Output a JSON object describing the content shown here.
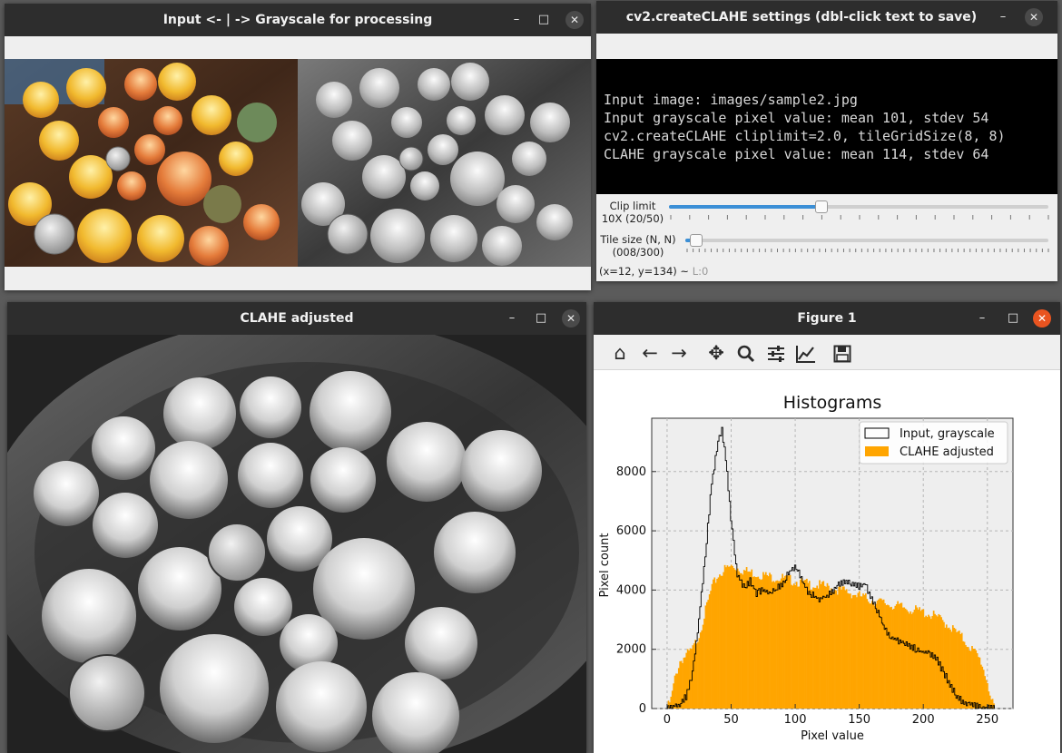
{
  "windows": {
    "input": {
      "title": "Input <- | -> Grayscale for processing"
    },
    "settings": {
      "title": "cv2.createCLAHE settings (dbl-click text to save)",
      "info_lines": [
        "Input image: images/sample2.jpg",
        "Input grayscale pixel value: mean 101, stdev 54",
        "cv2.createCLAHE cliplimit=2.0, tileGridSize(8, 8)",
        "CLAHE grayscale pixel value: mean 114, stdev 64"
      ],
      "clip_label": "Clip limit",
      "clip_value": "10X (20/50)",
      "clip_fraction": 0.4,
      "tile_label": "Tile size (N, N)",
      "tile_value": "(008/300)",
      "tile_fraction": 0.0267,
      "status_coords": "(x=12, y=134) ~",
      "status_level": "L:0"
    },
    "clahe": {
      "title": "CLAHE adjusted"
    },
    "figure": {
      "title": "Figure 1"
    }
  },
  "window_controls": {
    "minimize": "–",
    "maximize": "□",
    "close": "✕"
  },
  "toolbar_icons": [
    "home-icon",
    "back-arrow-icon",
    "forward-arrow-icon",
    "pan-icon",
    "zoom-icon",
    "configure-subplots-icon",
    "edit-axis-icon",
    "save-icon"
  ],
  "colors": {
    "titlebar": "#2d2d2d",
    "accent": "#e95420",
    "slider": "#3b8fd6",
    "clahe_fill": "#ffa500",
    "plot_bg": "#eeeeee"
  },
  "chart_data": {
    "type": "area",
    "title": "Histograms",
    "xlabel": "Pixel value",
    "ylabel": "Pixel count",
    "xlim": [
      -12,
      270
    ],
    "ylim": [
      0,
      9800
    ],
    "xticks": [
      0,
      50,
      100,
      150,
      200,
      250
    ],
    "yticks": [
      0,
      2000,
      4000,
      6000,
      8000
    ],
    "grid": true,
    "legend_position": "top-right",
    "series": [
      {
        "name": "Input, grayscale",
        "style": "step-outline",
        "color": "#000000",
        "x": [
          0,
          5,
          10,
          15,
          20,
          25,
          30,
          35,
          40,
          43,
          46,
          50,
          55,
          60,
          65,
          70,
          75,
          80,
          85,
          90,
          95,
          100,
          105,
          110,
          115,
          120,
          125,
          130,
          135,
          140,
          145,
          150,
          155,
          160,
          165,
          170,
          175,
          180,
          185,
          190,
          195,
          200,
          205,
          210,
          215,
          220,
          225,
          230,
          235,
          240,
          245,
          250,
          255
        ],
        "values": [
          0,
          60,
          150,
          400,
          1200,
          3000,
          5200,
          7600,
          9000,
          9400,
          8400,
          6400,
          4500,
          4100,
          4300,
          3900,
          4000,
          3900,
          4000,
          4200,
          4600,
          4800,
          4400,
          3900,
          3800,
          3700,
          3800,
          4000,
          4200,
          4300,
          4200,
          4100,
          4200,
          3700,
          3200,
          2700,
          2400,
          2300,
          2200,
          2100,
          2000,
          1900,
          1900,
          1700,
          1300,
          900,
          500,
          250,
          150,
          80,
          40,
          20,
          0
        ]
      },
      {
        "name": "CLAHE adjusted",
        "style": "filled-bars",
        "color": "#ffa500",
        "x": [
          0,
          3,
          6,
          10,
          15,
          20,
          25,
          30,
          35,
          40,
          45,
          50,
          55,
          60,
          65,
          70,
          75,
          80,
          90,
          100,
          110,
          120,
          130,
          140,
          150,
          160,
          170,
          180,
          190,
          200,
          210,
          220,
          230,
          240,
          245,
          250,
          253,
          255
        ],
        "values": [
          0,
          300,
          1000,
          1600,
          1800,
          2000,
          2500,
          3300,
          4100,
          4500,
          4700,
          4800,
          4750,
          4650,
          4600,
          4550,
          4500,
          4450,
          4400,
          4300,
          4200,
          4150,
          4050,
          3950,
          3800,
          3650,
          3550,
          3450,
          3350,
          3250,
          3100,
          2800,
          2400,
          1900,
          1600,
          900,
          300,
          0
        ]
      }
    ]
  }
}
